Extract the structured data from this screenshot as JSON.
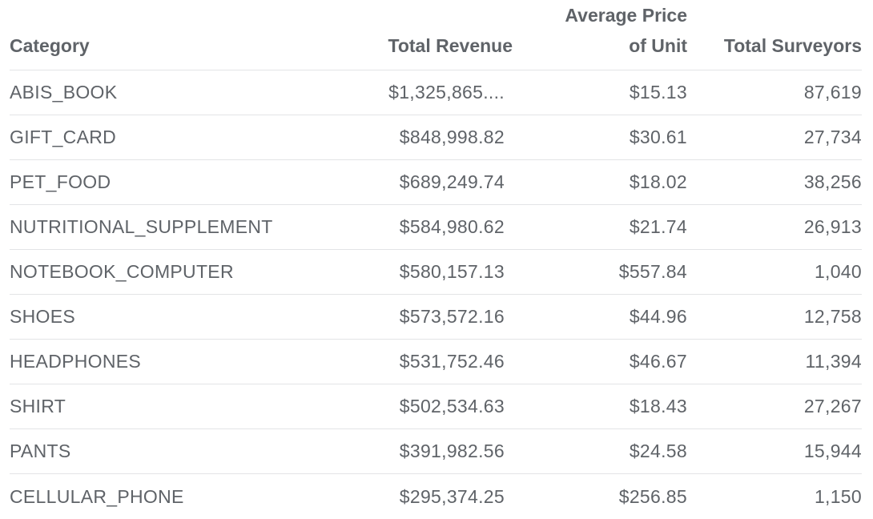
{
  "chart_data": {
    "type": "table",
    "columns": [
      {
        "key": "category",
        "label_lines": [
          "Category"
        ]
      },
      {
        "key": "total_revenue",
        "label_lines": [
          "Total Revenue"
        ]
      },
      {
        "key": "avg_price",
        "label_lines": [
          "Average Price",
          "of Unit"
        ]
      },
      {
        "key": "total_surveyors",
        "label_lines": [
          "Total Surveyors"
        ]
      }
    ],
    "rows": [
      {
        "category": "ABIS_BOOK",
        "total_revenue": "$1,325,865....",
        "avg_price": "$15.13",
        "total_surveyors": "87,619"
      },
      {
        "category": "GIFT_CARD",
        "total_revenue": "$848,998.82",
        "avg_price": "$30.61",
        "total_surveyors": "27,734"
      },
      {
        "category": "PET_FOOD",
        "total_revenue": "$689,249.74",
        "avg_price": "$18.02",
        "total_surveyors": "38,256"
      },
      {
        "category": "NUTRITIONAL_SUPPLEMENT",
        "total_revenue": "$584,980.62",
        "avg_price": "$21.74",
        "total_surveyors": "26,913"
      },
      {
        "category": "NOTEBOOK_COMPUTER",
        "total_revenue": "$580,157.13",
        "avg_price": "$557.84",
        "total_surveyors": "1,040"
      },
      {
        "category": "SHOES",
        "total_revenue": "$573,572.16",
        "avg_price": "$44.96",
        "total_surveyors": "12,758"
      },
      {
        "category": "HEADPHONES",
        "total_revenue": "$531,752.46",
        "avg_price": "$46.67",
        "total_surveyors": "11,394"
      },
      {
        "category": "SHIRT",
        "total_revenue": "$502,534.63",
        "avg_price": "$18.43",
        "total_surveyors": "27,267"
      },
      {
        "category": "PANTS",
        "total_revenue": "$391,982.56",
        "avg_price": "$24.58",
        "total_surveyors": "15,944"
      },
      {
        "category": "CELLULAR_PHONE",
        "total_revenue": "$295,374.25",
        "avg_price": "$256.85",
        "total_surveyors": "1,150"
      }
    ]
  },
  "colors": {
    "text": "#5f6368",
    "divider": "#e3e4e6",
    "background": "#ffffff"
  }
}
